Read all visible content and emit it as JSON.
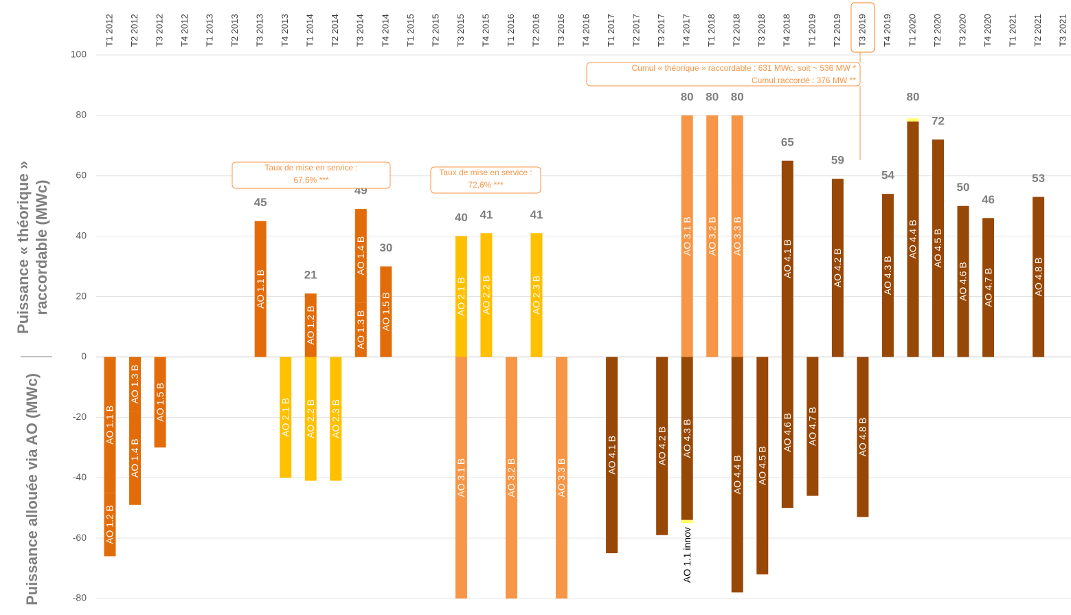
{
  "chart_data": {
    "type": "bar",
    "categories": [
      "T1 2012",
      "T2 2012",
      "T3 2012",
      "T4 2012",
      "T1 2013",
      "T2 2013",
      "T3 2013",
      "T4 2013",
      "T1 2014",
      "T2 2014",
      "T3 2014",
      "T4 2014",
      "T1 2015",
      "T2 2015",
      "T3 2015",
      "T4 2015",
      "T1 2016",
      "T2 2016",
      "T3 2016",
      "T4 2016",
      "T1 2017",
      "T2 2017",
      "T3 2017",
      "T4 2017",
      "T1 2018",
      "T2 2018",
      "T3 2018",
      "T4 2018",
      "T1 2019",
      "T2 2019",
      "T3 2019",
      "T4 2019",
      "T1 2020",
      "T2 2020",
      "T3 2020",
      "T4 2020",
      "T1 2021",
      "T2 2021",
      "T3 2021"
    ],
    "ylim": [
      -80,
      100
    ],
    "yticks": [
      -80,
      -60,
      -40,
      -20,
      0,
      20,
      40,
      60,
      80,
      100
    ],
    "grid": true,
    "highlight_category": "T3 2019",
    "y_title_upper": [
      "Puissance « théorique »",
      "raccordable (MWc)"
    ],
    "y_title_lower": "Puissance allouée via AO (MWc)",
    "segments": [
      {
        "category": "T1 2012",
        "name": "AO 1.1 B",
        "value": -45,
        "color": "#e36c0a"
      },
      {
        "category": "T1 2012",
        "name": "AO 1.2 B",
        "value": -21,
        "color": "#e36c0a"
      },
      {
        "category": "T2 2012",
        "name": "AO 1.3 B",
        "value": -18,
        "color": "#e36c0a"
      },
      {
        "category": "T2 2012",
        "name": "AO 1.4 B",
        "value": -31,
        "color": "#e36c0a"
      },
      {
        "category": "T3 2012",
        "name": "AO 1.5 B",
        "value": -30,
        "color": "#e36c0a"
      },
      {
        "category": "T3 2013",
        "name": "AO 1.1 B",
        "value": 45,
        "color": "#e36c0a"
      },
      {
        "category": "T4 2013",
        "name": "AO 2.1 B",
        "value": -40,
        "color": "#ffc000"
      },
      {
        "category": "T1 2014",
        "name": "AO 1.2 B",
        "value": 21,
        "color": "#e36c0a"
      },
      {
        "category": "T1 2014",
        "name": "AO 2.2 B",
        "value": -41,
        "color": "#ffc000"
      },
      {
        "category": "T2 2014",
        "name": "AO 2.3 B",
        "value": -41,
        "color": "#ffc000"
      },
      {
        "category": "T3 2014",
        "name": "AO 1.3 B",
        "value": 18,
        "color": "#e36c0a"
      },
      {
        "category": "T3 2014",
        "name": "AO 1.4 B",
        "value": 31,
        "color": "#e36c0a"
      },
      {
        "category": "T4 2014",
        "name": "AO 1.5 B",
        "value": 30,
        "color": "#e36c0a"
      },
      {
        "category": "T3 2015",
        "name": "AO 2.1 B",
        "value": 40,
        "color": "#ffc000"
      },
      {
        "category": "T3 2015",
        "name": "AO 3.1 B",
        "value": -80,
        "color": "#f79646"
      },
      {
        "category": "T4 2015",
        "name": "AO 2.2 B",
        "value": 41,
        "color": "#ffc000"
      },
      {
        "category": "T1 2016",
        "name": "AO 3.2 B",
        "value": -80,
        "color": "#f79646"
      },
      {
        "category": "T2 2016",
        "name": "AO 2.3 B",
        "value": 41,
        "color": "#ffc000"
      },
      {
        "category": "T3 2016",
        "name": "AO 3.3 B",
        "value": -80,
        "color": "#f79646"
      },
      {
        "category": "T1 2017",
        "name": "AO 4.1 B",
        "value": -65,
        "color": "#974706"
      },
      {
        "category": "T3 2017",
        "name": "AO 4.2 B",
        "value": -59,
        "color": "#974706"
      },
      {
        "category": "T4 2017",
        "name": "AO 3.1 B",
        "value": 80,
        "color": "#f79646"
      },
      {
        "category": "T4 2017",
        "name": "AO 4.3 B",
        "value": -54,
        "color": "#974706"
      },
      {
        "category": "T4 2017",
        "name": "AO 1.1 innov",
        "value": -1,
        "color": "#ffff66",
        "label_below": true
      },
      {
        "category": "T1 2018",
        "name": "AO 3.2 B",
        "value": 80,
        "color": "#f79646"
      },
      {
        "category": "T2 2018",
        "name": "AO 3.3 B",
        "value": 80,
        "color": "#f79646"
      },
      {
        "category": "T2 2018",
        "name": "AO 4.4 B",
        "value": -78,
        "color": "#974706"
      },
      {
        "category": "T3 2018",
        "name": "AO 4.5 B",
        "value": -72,
        "color": "#974706"
      },
      {
        "category": "T4 2018",
        "name": "AO 4.1 B",
        "value": 65,
        "color": "#974706"
      },
      {
        "category": "T4 2018",
        "name": "AO 4.6 B",
        "value": -50,
        "color": "#974706"
      },
      {
        "category": "T1 2019",
        "name": "AO 4.7 B",
        "value": -46,
        "color": "#974706"
      },
      {
        "category": "T2 2019",
        "name": "AO 4.2 B",
        "value": 59,
        "color": "#974706"
      },
      {
        "category": "T3 2019",
        "name": "AO 4.8 B",
        "value": -53,
        "color": "#974706"
      },
      {
        "category": "T4 2019",
        "name": "AO 4.3 B",
        "value": 54,
        "color": "#974706"
      },
      {
        "category": "T1 2020",
        "name": "AO 4.4 B",
        "value": 78,
        "color": "#974706"
      },
      {
        "category": "T1 2020",
        "name": null,
        "value": 1,
        "color": "#ffff66"
      },
      {
        "category": "T2 2020",
        "name": "AO 4.5 B",
        "value": 72,
        "color": "#974706"
      },
      {
        "category": "T3 2020",
        "name": "AO 4.6 B",
        "value": 50,
        "color": "#974706"
      },
      {
        "category": "T4 2020",
        "name": "AO 4.7 B",
        "value": 46,
        "color": "#974706"
      },
      {
        "category": "T2 2021",
        "name": "AO 4.8 B",
        "value": 53,
        "color": "#974706"
      }
    ],
    "totals": [
      {
        "category": "T3 2013",
        "value": 45
      },
      {
        "category": "T1 2014",
        "value": 21
      },
      {
        "category": "T3 2014",
        "value": 49
      },
      {
        "category": "T4 2014",
        "value": 30
      },
      {
        "category": "T3 2015",
        "value": 40
      },
      {
        "category": "T4 2015",
        "value": 41
      },
      {
        "category": "T2 2016",
        "value": 41
      },
      {
        "category": "T4 2017",
        "value": 80
      },
      {
        "category": "T1 2018",
        "value": 80
      },
      {
        "category": "T2 2018",
        "value": 80
      },
      {
        "category": "T4 2018",
        "value": 65
      },
      {
        "category": "T2 2019",
        "value": 59
      },
      {
        "category": "T4 2019",
        "value": 54
      },
      {
        "category": "T1 2020",
        "value": 80
      },
      {
        "category": "T2 2020",
        "value": 72
      },
      {
        "category": "T3 2020",
        "value": 50
      },
      {
        "category": "T4 2020",
        "value": 46
      },
      {
        "category": "T2 2021",
        "value": 53
      }
    ],
    "annotations": [
      [
        "Taux de mise en service :",
        "67,6% ***"
      ],
      [
        "Taux de mise en service :",
        "72,6% ***"
      ],
      [
        "Cumul « théorique » raccordable : 631 MWc, soit ~ 536 MW *",
        "Cumul raccordé : 376 MW **"
      ]
    ]
  }
}
